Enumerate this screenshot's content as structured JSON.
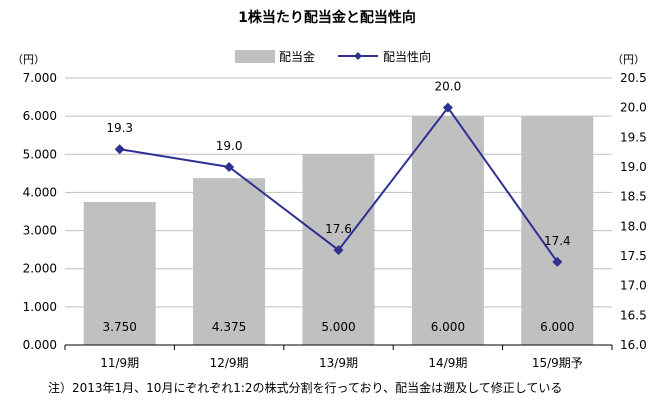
{
  "chart_data": {
    "type": "bar",
    "title": "1株当たり配当金と配当性向",
    "categories": [
      "11/9期",
      "12/9期",
      "13/9期",
      "14/9期",
      "15/9期予"
    ],
    "series": [
      {
        "name": "配当金",
        "type": "bar",
        "axis": "left",
        "values": [
          3.75,
          4.375,
          5.0,
          6.0,
          6.0
        ],
        "labels": [
          "3.750",
          "4.375",
          "5.000",
          "6.000",
          "6.000"
        ],
        "color": "#c0c0c0"
      },
      {
        "name": "配当性向",
        "type": "line",
        "axis": "right",
        "values": [
          19.3,
          19.0,
          17.6,
          20.0,
          17.4
        ],
        "labels": [
          "19.3",
          "19.0",
          "17.6",
          "20.0",
          "17.4"
        ],
        "color": "#2e3192"
      }
    ],
    "y_left": {
      "unit": "（円）",
      "ylim": [
        0,
        7
      ],
      "ticks": [
        "0.000",
        "1.000",
        "2.000",
        "3.000",
        "4.000",
        "5.000",
        "6.000",
        "7.000"
      ]
    },
    "y_right": {
      "unit": "（円）",
      "ylim": [
        16,
        20.5
      ],
      "ticks": [
        "16.0",
        "16.5",
        "17.0",
        "17.5",
        "18.0",
        "18.5",
        "19.0",
        "19.5",
        "20.0",
        "20.5"
      ]
    },
    "grid": true,
    "legend_position": "top-center",
    "note": "注）2013年1月、10月にぞれぞれ1:2の株式分割を行っており、配当金は遡及して修正している"
  }
}
